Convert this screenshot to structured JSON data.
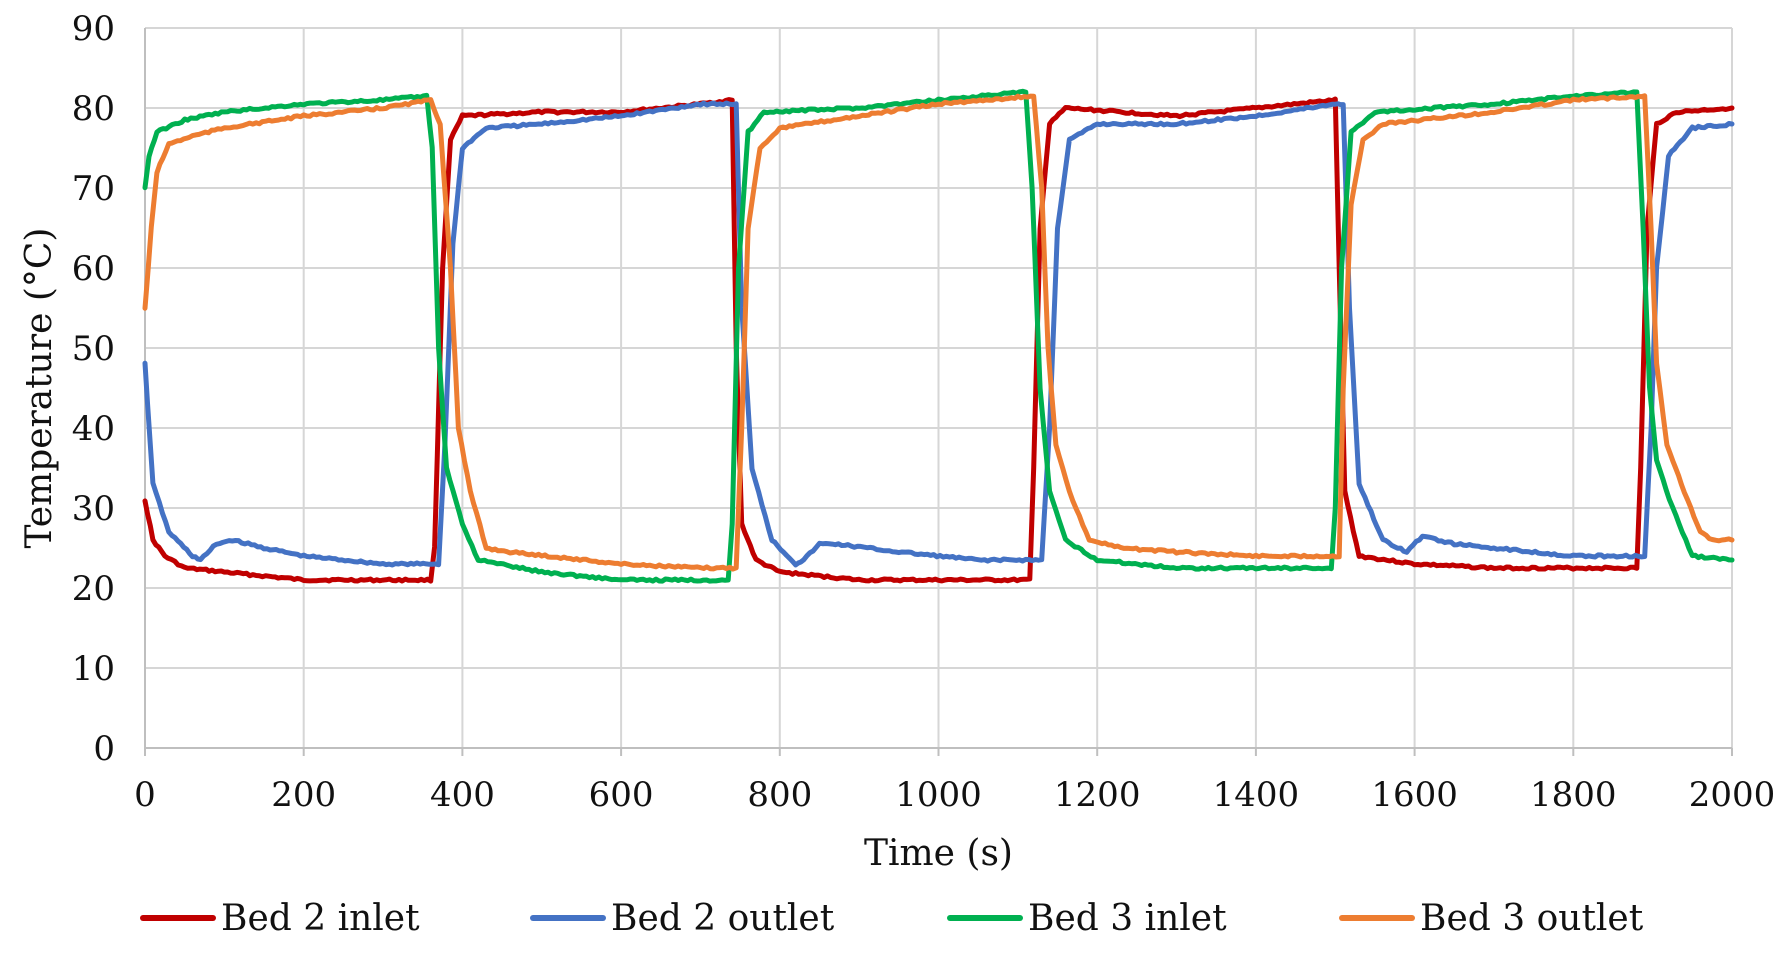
{
  "chart_data": {
    "type": "line",
    "title": "",
    "xlabel": "Time (s)",
    "ylabel": "Temperature  (°C)",
    "xlim": [
      0,
      2000
    ],
    "ylim": [
      0,
      90
    ],
    "xticks": [
      0,
      200,
      400,
      600,
      800,
      1000,
      1200,
      1400,
      1600,
      1800,
      2000
    ],
    "yticks": [
      0,
      10,
      20,
      30,
      40,
      50,
      60,
      70,
      80,
      90
    ],
    "grid": true,
    "legend_position": "bottom",
    "series": [
      {
        "name": "Bed 2 inlet",
        "color": "#c00000",
        "points": [
          [
            0,
            31
          ],
          [
            10,
            26
          ],
          [
            25,
            24
          ],
          [
            50,
            22.5
          ],
          [
            100,
            22
          ],
          [
            200,
            21
          ],
          [
            300,
            21
          ],
          [
            360,
            21
          ],
          [
            365,
            25
          ],
          [
            375,
            60
          ],
          [
            385,
            76
          ],
          [
            400,
            79
          ],
          [
            500,
            79.5
          ],
          [
            600,
            79.5
          ],
          [
            700,
            80.5
          ],
          [
            740,
            81
          ],
          [
            745,
            50
          ],
          [
            752,
            28
          ],
          [
            770,
            23.5
          ],
          [
            800,
            22
          ],
          [
            900,
            21
          ],
          [
            1000,
            21
          ],
          [
            1115,
            21
          ],
          [
            1120,
            35
          ],
          [
            1128,
            65
          ],
          [
            1140,
            78
          ],
          [
            1160,
            80
          ],
          [
            1300,
            79
          ],
          [
            1400,
            80
          ],
          [
            1500,
            81
          ],
          [
            1505,
            60
          ],
          [
            1512,
            32
          ],
          [
            1530,
            24
          ],
          [
            1600,
            23
          ],
          [
            1700,
            22.5
          ],
          [
            1800,
            22.5
          ],
          [
            1880,
            22.5
          ],
          [
            1885,
            35
          ],
          [
            1893,
            65
          ],
          [
            1905,
            78
          ],
          [
            1930,
            79.5
          ],
          [
            2000,
            80
          ]
        ]
      },
      {
        "name": "Bed 2 outlet",
        "color": "#4472c4",
        "points": [
          [
            0,
            48
          ],
          [
            10,
            33
          ],
          [
            30,
            27
          ],
          [
            60,
            24
          ],
          [
            70,
            23.5
          ],
          [
            90,
            25.5
          ],
          [
            110,
            26
          ],
          [
            150,
            25
          ],
          [
            200,
            24
          ],
          [
            300,
            23
          ],
          [
            370,
            23
          ],
          [
            378,
            38
          ],
          [
            388,
            63
          ],
          [
            400,
            75
          ],
          [
            430,
            77.5
          ],
          [
            500,
            78
          ],
          [
            600,
            79
          ],
          [
            700,
            80.5
          ],
          [
            745,
            80.5
          ],
          [
            752,
            55
          ],
          [
            765,
            35
          ],
          [
            790,
            26
          ],
          [
            820,
            23
          ],
          [
            830,
            23.5
          ],
          [
            850,
            25.5
          ],
          [
            870,
            25.5
          ],
          [
            950,
            24.5
          ],
          [
            1050,
            23.5
          ],
          [
            1130,
            23.5
          ],
          [
            1140,
            40
          ],
          [
            1150,
            65
          ],
          [
            1165,
            76
          ],
          [
            1200,
            78
          ],
          [
            1300,
            78
          ],
          [
            1400,
            79
          ],
          [
            1500,
            80.5
          ],
          [
            1510,
            80.5
          ],
          [
            1518,
            55
          ],
          [
            1530,
            33
          ],
          [
            1560,
            26
          ],
          [
            1590,
            24.5
          ],
          [
            1610,
            26.5
          ],
          [
            1650,
            25.5
          ],
          [
            1700,
            25
          ],
          [
            1800,
            24
          ],
          [
            1890,
            24
          ],
          [
            1898,
            40
          ],
          [
            1905,
            60
          ],
          [
            1920,
            74
          ],
          [
            1950,
            77.5
          ],
          [
            2000,
            78
          ]
        ]
      },
      {
        "name": "Bed 3 inlet",
        "color": "#00b050",
        "points": [
          [
            0,
            70
          ],
          [
            5,
            74
          ],
          [
            15,
            77
          ],
          [
            50,
            78.5
          ],
          [
            100,
            79.5
          ],
          [
            200,
            80.5
          ],
          [
            300,
            81
          ],
          [
            355,
            81.5
          ],
          [
            362,
            75
          ],
          [
            370,
            50
          ],
          [
            380,
            35
          ],
          [
            400,
            28
          ],
          [
            420,
            23.5
          ],
          [
            500,
            22
          ],
          [
            600,
            21
          ],
          [
            700,
            21
          ],
          [
            735,
            21
          ],
          [
            740,
            28
          ],
          [
            748,
            60
          ],
          [
            760,
            77
          ],
          [
            780,
            79.5
          ],
          [
            900,
            80
          ],
          [
            1000,
            81
          ],
          [
            1110,
            82
          ],
          [
            1118,
            70
          ],
          [
            1128,
            45
          ],
          [
            1140,
            32
          ],
          [
            1160,
            26
          ],
          [
            1200,
            23.5
          ],
          [
            1300,
            22.5
          ],
          [
            1400,
            22.5
          ],
          [
            1495,
            22.5
          ],
          [
            1500,
            30
          ],
          [
            1508,
            60
          ],
          [
            1520,
            77
          ],
          [
            1550,
            79.5
          ],
          [
            1700,
            80.5
          ],
          [
            1800,
            81.5
          ],
          [
            1880,
            82
          ],
          [
            1888,
            65
          ],
          [
            1896,
            45
          ],
          [
            1905,
            36
          ],
          [
            1925,
            30
          ],
          [
            1950,
            24
          ],
          [
            2000,
            23.5
          ]
        ]
      },
      {
        "name": "Bed 3 outlet",
        "color": "#ed7d31",
        "points": [
          [
            0,
            55
          ],
          [
            8,
            65
          ],
          [
            15,
            72
          ],
          [
            30,
            75.5
          ],
          [
            60,
            76.5
          ],
          [
            100,
            77.5
          ],
          [
            200,
            79
          ],
          [
            300,
            80
          ],
          [
            360,
            81
          ],
          [
            372,
            78
          ],
          [
            385,
            60
          ],
          [
            395,
            40
          ],
          [
            410,
            32
          ],
          [
            430,
            25
          ],
          [
            460,
            24.5
          ],
          [
            600,
            23
          ],
          [
            700,
            22.5
          ],
          [
            745,
            22.5
          ],
          [
            752,
            40
          ],
          [
            760,
            65
          ],
          [
            775,
            75
          ],
          [
            800,
            77.5
          ],
          [
            900,
            79
          ],
          [
            1000,
            80.5
          ],
          [
            1120,
            81.5
          ],
          [
            1130,
            70
          ],
          [
            1138,
            50
          ],
          [
            1148,
            38
          ],
          [
            1165,
            32
          ],
          [
            1190,
            26
          ],
          [
            1230,
            25
          ],
          [
            1300,
            24.5
          ],
          [
            1400,
            24
          ],
          [
            1505,
            24
          ],
          [
            1510,
            45
          ],
          [
            1520,
            68
          ],
          [
            1535,
            76
          ],
          [
            1560,
            78
          ],
          [
            1700,
            79.5
          ],
          [
            1800,
            81
          ],
          [
            1890,
            81.5
          ],
          [
            1898,
            65
          ],
          [
            1905,
            48
          ],
          [
            1918,
            38
          ],
          [
            1940,
            32
          ],
          [
            1960,
            27
          ],
          [
            1975,
            26
          ],
          [
            2000,
            26
          ]
        ]
      }
    ]
  }
}
